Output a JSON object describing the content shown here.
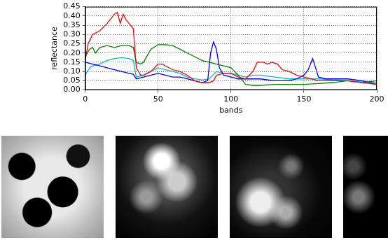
{
  "chart_data": {
    "type": "line",
    "x_label": "bands",
    "y_label": "reflectance",
    "xlim": [
      0,
      200
    ],
    "xticks": [
      0,
      50,
      100,
      150,
      200
    ],
    "ylim": [
      0,
      0.45
    ],
    "yticks": [
      {
        "value": 0,
        "label": "0.00"
      },
      0.05,
      {
        "value": 0.1,
        "label": "0.10"
      },
      0.15,
      {
        "value": 0.2,
        "label": "0.20"
      },
      0.25,
      {
        "value": 0.3,
        "label": "0.30"
      },
      0.35,
      {
        "value": 0.4,
        "label": "0.40"
      },
      0.45
    ],
    "grid": true,
    "series": [
      {
        "color": "#ff0000",
        "x": [
          0,
          2,
          5,
          10,
          15,
          20,
          22,
          24,
          26,
          28,
          30,
          33,
          35,
          38,
          40,
          45,
          50,
          53,
          55,
          60,
          65,
          70,
          75,
          80,
          85,
          88,
          90,
          95,
          100,
          105,
          110,
          115,
          118,
          122,
          125,
          128,
          132,
          135,
          140,
          145,
          150,
          155,
          160,
          170,
          180,
          190,
          200
        ],
        "values": [
          0.16,
          0.25,
          0.3,
          0.32,
          0.36,
          0.41,
          0.42,
          0.36,
          0.41,
          0.38,
          0.36,
          0.33,
          0.12,
          0.08,
          0.08,
          0.1,
          0.14,
          0.14,
          0.13,
          0.11,
          0.1,
          0.08,
          0.05,
          0.04,
          0.04,
          0.05,
          0.08,
          0.09,
          0.09,
          0.07,
          0.06,
          0.1,
          0.15,
          0.15,
          0.14,
          0.15,
          0.14,
          0.11,
          0.1,
          0.08,
          0.07,
          0.06,
          0.05,
          0.05,
          0.05,
          0.04,
          0.03
        ]
      },
      {
        "color": "#008000",
        "x": [
          0,
          3,
          5,
          7,
          10,
          15,
          20,
          25,
          30,
          33,
          35,
          38,
          40,
          45,
          50,
          55,
          60,
          65,
          70,
          75,
          80,
          85,
          90,
          95,
          100,
          105,
          110,
          115,
          120,
          130,
          140,
          150,
          160,
          170,
          180,
          190,
          200
        ],
        "values": [
          0.18,
          0.22,
          0.23,
          0.2,
          0.23,
          0.24,
          0.23,
          0.24,
          0.24,
          0.23,
          0.15,
          0.14,
          0.15,
          0.22,
          0.245,
          0.245,
          0.24,
          0.22,
          0.2,
          0.18,
          0.16,
          0.15,
          0.14,
          0.13,
          0.12,
          0.08,
          0.03,
          0.025,
          0.025,
          0.03,
          0.03,
          0.03,
          0.035,
          0.04,
          0.05,
          0.04,
          0.05
        ]
      },
      {
        "color": "#0000ff",
        "x": [
          0,
          5,
          10,
          15,
          20,
          25,
          30,
          33,
          35,
          40,
          45,
          50,
          55,
          60,
          65,
          70,
          75,
          80,
          84,
          86,
          88,
          90,
          92,
          95,
          100,
          105,
          110,
          115,
          120,
          130,
          140,
          145,
          150,
          153,
          156,
          158,
          160,
          165,
          170,
          180,
          190,
          200
        ],
        "values": [
          0.15,
          0.14,
          0.13,
          0.12,
          0.11,
          0.1,
          0.09,
          0.085,
          0.06,
          0.07,
          0.08,
          0.09,
          0.08,
          0.07,
          0.07,
          0.06,
          0.05,
          0.04,
          0.05,
          0.2,
          0.26,
          0.22,
          0.12,
          0.08,
          0.07,
          0.06,
          0.06,
          0.06,
          0.06,
          0.05,
          0.05,
          0.06,
          0.08,
          0.11,
          0.17,
          0.12,
          0.07,
          0.06,
          0.06,
          0.06,
          0.05,
          0.03
        ]
      },
      {
        "color": "#00bfbf",
        "x": [
          0,
          3,
          5,
          10,
          15,
          20,
          25,
          30,
          33,
          35,
          40,
          45,
          50,
          55,
          60,
          65,
          70,
          75,
          80,
          85,
          90,
          95,
          100,
          105,
          110,
          115,
          120,
          130,
          140,
          150,
          160,
          170,
          180,
          190,
          200
        ],
        "values": [
          0.08,
          0.12,
          0.13,
          0.14,
          0.16,
          0.17,
          0.175,
          0.17,
          0.16,
          0.07,
          0.08,
          0.1,
          0.12,
          0.11,
          0.1,
          0.09,
          0.07,
          0.06,
          0.055,
          0.06,
          0.1,
          0.09,
          0.09,
          0.08,
          0.07,
          0.08,
          0.08,
          0.07,
          0.06,
          0.06,
          0.06,
          0.055,
          0.05,
          0.045,
          0.04
        ]
      }
    ]
  }
}
